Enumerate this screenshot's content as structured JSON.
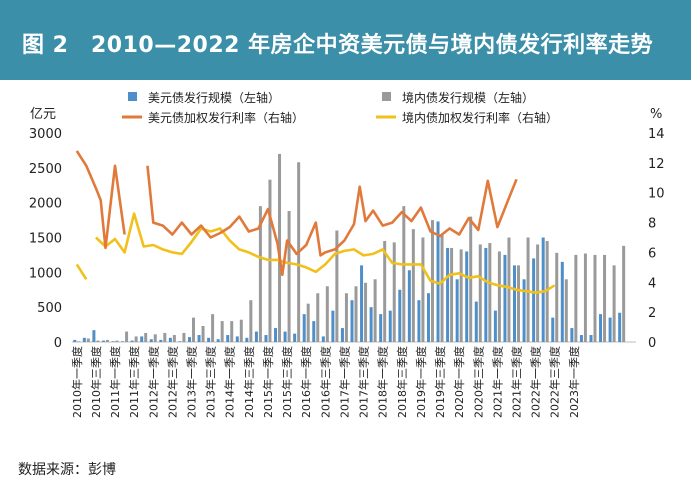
{
  "title": "图 2　2010—2022 年房企中资美元债与境内债发行利率走势",
  "source": "数据来源：彭博",
  "colors": {
    "header_bg": "#3b8fa8",
    "usd_bar": "#4f8fc9",
    "dom_bar": "#9a9a9a",
    "usd_rate": "#e0793a",
    "dom_rate": "#f2c01b"
  },
  "chart_data": {
    "type": "bar",
    "left_axis_unit": "亿元",
    "right_axis_unit": "%",
    "ylim_left": [
      0,
      3000
    ],
    "ylim_right": [
      0,
      14
    ],
    "yticks_left": [
      0,
      500,
      1000,
      1500,
      2000,
      2500,
      3000
    ],
    "yticks_right": [
      0,
      2,
      4,
      6,
      8,
      10,
      12,
      14
    ],
    "grid": false,
    "legend_position": "top",
    "x_tick_labels": [
      "2010年一季度",
      "2010年三季度",
      "2011年一季度",
      "2011年三季度",
      "2012年一季度",
      "2012年三季度",
      "2013年一季度",
      "2013年三季度",
      "2014年一季度",
      "2014年三季度",
      "2015年一季度",
      "2015年三季度",
      "2016年一季度",
      "2016年三季度",
      "2017年一季度",
      "2017年三季度",
      "2018年一季度",
      "2018年三季度",
      "2019年一季度",
      "2019年三季度",
      "2020年一季度",
      "2020年三季度",
      "2021年一季度",
      "2021年三季度",
      "2022年一季度",
      "2022年三季度",
      "2023年一季度"
    ],
    "series": [
      {
        "name": "美元债发行规模（左轴）",
        "kind": "bar",
        "axis": "left",
        "values": [
          30,
          60,
          170,
          20,
          10,
          10,
          20,
          80,
          40,
          30,
          60,
          10,
          70,
          100,
          60,
          40,
          100,
          80,
          60,
          150,
          100,
          200,
          150,
          120,
          400,
          300,
          80,
          450,
          200,
          600,
          1100,
          500,
          400,
          450,
          750,
          1030,
          600,
          700,
          1730,
          1350,
          900,
          1300,
          580,
          1350,
          450,
          1250,
          1100,
          900,
          1200,
          1500,
          350,
          1150,
          200,
          100,
          100,
          400,
          350,
          420
        ]
      },
      {
        "name": "境内债发行规模（左轴）",
        "kind": "bar",
        "axis": "left",
        "values": [
          10,
          50,
          20,
          30,
          20,
          150,
          80,
          130,
          110,
          130,
          100,
          130,
          350,
          230,
          400,
          300,
          300,
          320,
          600,
          1950,
          2330,
          2700,
          1880,
          2580,
          550,
          700,
          800,
          1600,
          700,
          800,
          850,
          900,
          1450,
          1430,
          1950,
          1620,
          1500,
          1750,
          1550,
          1350,
          1330,
          1800,
          1400,
          1420,
          1300,
          1500,
          1100,
          1500,
          1400,
          1450,
          1280,
          900,
          1250,
          1270,
          1250,
          1250,
          1100,
          1380
        ]
      },
      {
        "name": "美元债加权发行利率（右轴）",
        "kind": "line",
        "axis": "right",
        "segments": [
          [
            [
              0,
              12.8
            ],
            [
              1,
              11.8
            ],
            [
              2,
              10.3
            ],
            [
              2.5,
              9.5
            ],
            [
              3,
              6.3
            ],
            [
              4,
              11.8
            ],
            [
              5,
              7.2
            ]
          ],
          [
            [
              7.4,
              11.8
            ],
            [
              8,
              8.0
            ],
            [
              9,
              7.8
            ],
            [
              10,
              7.2
            ],
            [
              11,
              8.0
            ],
            [
              12,
              7.2
            ],
            [
              13,
              7.8
            ],
            [
              14,
              7.0
            ],
            [
              15,
              7.3
            ],
            [
              16,
              7.7
            ],
            [
              17,
              8.4
            ],
            [
              18,
              7.4
            ],
            [
              19,
              7.6
            ],
            [
              20,
              8.9
            ],
            [
              21,
              6.6
            ],
            [
              21.5,
              4.5
            ],
            [
              22,
              6.8
            ],
            [
              23,
              5.9
            ],
            [
              24,
              6.5
            ],
            [
              25,
              8.0
            ],
            [
              25.5,
              5.8
            ],
            [
              26,
              6.0
            ],
            [
              27,
              6.2
            ],
            [
              28,
              6.8
            ],
            [
              29,
              7.9
            ],
            [
              29.6,
              10.4
            ],
            [
              30.2,
              8.1
            ],
            [
              31,
              8.8
            ],
            [
              32,
              7.8
            ],
            [
              33,
              8.0
            ],
            [
              34,
              8.7
            ],
            [
              35,
              8.1
            ],
            [
              36,
              9.0
            ],
            [
              37,
              7.4
            ],
            [
              38,
              7.1
            ],
            [
              39,
              7.6
            ],
            [
              40,
              7.2
            ],
            [
              41,
              8.3
            ],
            [
              42,
              7.5
            ],
            [
              43,
              10.8
            ],
            [
              44,
              7.7
            ],
            [
              45,
              9.3
            ],
            [
              46,
              10.9
            ]
          ]
        ]
      },
      {
        "name": "境内债加权发行利率（右轴）",
        "kind": "line",
        "axis": "right",
        "segments": [
          [
            [
              0,
              5.2
            ],
            [
              1,
              4.2
            ]
          ],
          [
            [
              2,
              7.0
            ],
            [
              3,
              6.4
            ],
            [
              4,
              6.9
            ],
            [
              5,
              6.0
            ],
            [
              6,
              8.6
            ],
            [
              7,
              6.4
            ],
            [
              8,
              6.5
            ],
            [
              9,
              6.2
            ],
            [
              10,
              6.0
            ],
            [
              11,
              5.9
            ],
            [
              12,
              6.7
            ],
            [
              13,
              7.6
            ],
            [
              14,
              7.4
            ],
            [
              15,
              7.6
            ],
            [
              16,
              6.8
            ],
            [
              17,
              6.2
            ],
            [
              18,
              6.0
            ],
            [
              19,
              5.7
            ],
            [
              20,
              5.5
            ],
            [
              21,
              5.5
            ],
            [
              22,
              5.3
            ],
            [
              23,
              5.2
            ],
            [
              24,
              5.0
            ],
            [
              25,
              4.7
            ],
            [
              26,
              5.2
            ],
            [
              27,
              5.9
            ],
            [
              28,
              6.1
            ],
            [
              29,
              6.2
            ],
            [
              30,
              5.8
            ],
            [
              31,
              5.9
            ],
            [
              32,
              6.2
            ],
            [
              33,
              5.3
            ],
            [
              34,
              5.2
            ],
            [
              35,
              5.2
            ],
            [
              36,
              5.2
            ],
            [
              37,
              4.1
            ],
            [
              38,
              3.9
            ],
            [
              39,
              4.5
            ],
            [
              40,
              4.6
            ],
            [
              41,
              4.3
            ],
            [
              42,
              4.4
            ],
            [
              43,
              4.0
            ],
            [
              44,
              3.8
            ],
            [
              45,
              3.7
            ],
            [
              46,
              3.5
            ],
            [
              47,
              3.4
            ],
            [
              48,
              3.3
            ],
            [
              49,
              3.4
            ],
            [
              50,
              3.8
            ]
          ]
        ]
      }
    ]
  }
}
